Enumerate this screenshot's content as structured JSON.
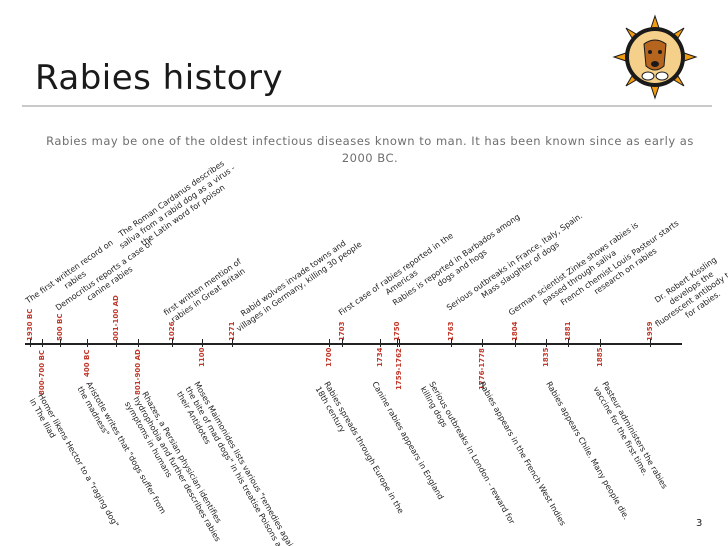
{
  "slide": {
    "title": "Rabies history",
    "subtitle": "Rabies may be one of the oldest infectious diseases known to man. It has been known since as early as 2000 BC.",
    "page_number": "3",
    "logo": {
      "icon": "dog-head-sun-logo",
      "colors": {
        "rays": "#f39c12",
        "ring": "#1a1a1a",
        "dog": "#b5651d"
      }
    }
  },
  "timeline": {
    "accent_color": "#c0392b",
    "events_above": [
      {
        "year": "1930 BC",
        "text": "The first written record on\nrabies"
      },
      {
        "year": "500 BC",
        "text": "Democritus reports a case of\ncanine rabies"
      },
      {
        "year": "001-100 AD",
        "text": "The Roman Cardanus describes\nsaliva from a rabid dog as a virus -\nthe Latin word for poison"
      },
      {
        "year": "1026",
        "text": "first written mention of\nrabies in Great Britain"
      },
      {
        "year": "1271",
        "text": "Rabid wolves invade towns and\nvillages in Germany, killing 30 people"
      },
      {
        "year": "1703",
        "text": "First case of rabies reported in the\nAmericas"
      },
      {
        "year": "1750",
        "text": "Rabies is reported in Barbados among\ndogs and hogs"
      },
      {
        "year": "1763",
        "text": "Serious outbreaks in France, Italy, Spain.\nMass slaughter of dogs"
      },
      {
        "year": "1804",
        "text": "German scientist Zinke shows rabies is\npassed through saliva"
      },
      {
        "year": "1881",
        "text": "French chemist Louis Pasteur starts\nresearch on rabies"
      },
      {
        "year": "1959",
        "text": "Dr. Robert Kissling\ndevelops the\nfluorescent antibody test\nfor rabies."
      }
    ],
    "events_below": [
      {
        "year": "800-700 BC",
        "text": "Homer likens Hector to a \"raging dog\"\nin The Iliad"
      },
      {
        "year": "400 BC",
        "text": "Aristotle writes that \"dogs suffer from\nthe madness\""
      },
      {
        "year": "801-900 AD",
        "text": "Rhazes, a Persian physician identifies\nhydrophobia and further describes rabies\nsymptoms in humans"
      },
      {
        "year": "1100",
        "text": "Moses Maimonides lists various \"remedies against\nthe bite of mad dogs\" in his treatise Poisons and\ntheir Antidotes"
      },
      {
        "year": "1700",
        "text": "Rabies spreads through Europe in the\n18th century"
      },
      {
        "year": "1734",
        "text": "Canine rabies appears in England"
      },
      {
        "year": "1759-1762",
        "text": "Serious outbreaks in London - reward for\nkilling dogs"
      },
      {
        "year": "1776-1778",
        "text": "Rabies appears in the French West Indies"
      },
      {
        "year": "1835",
        "text": "Rabies appears Chile. Many people die."
      },
      {
        "year": "1885",
        "text": "Pasteur administers the rabies\nvaccine for the first time."
      }
    ]
  }
}
